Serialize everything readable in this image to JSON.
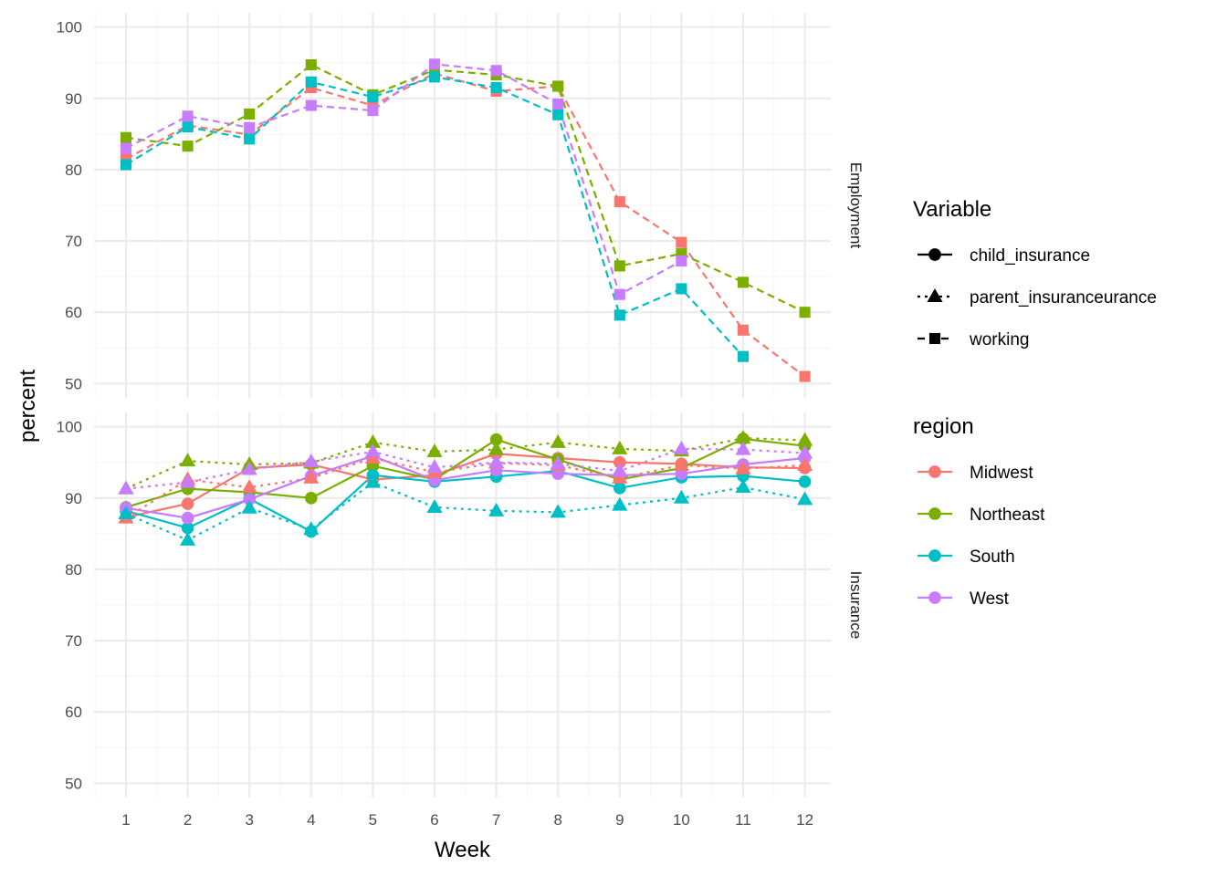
{
  "chart_data": {
    "type": "line",
    "xlabel": "Week",
    "ylabel": "percent",
    "x": [
      1,
      2,
      3,
      4,
      5,
      6,
      7,
      8,
      9,
      10,
      11,
      12
    ],
    "ylim": [
      48,
      102
    ],
    "yticks": [
      50,
      60,
      70,
      80,
      90,
      100
    ],
    "grid": true,
    "legend_position": "right",
    "facets": [
      {
        "name": "Employment",
        "series": [
          {
            "region": "Midwest",
            "variable": "working",
            "values": [
              81.5,
              86.2,
              84.9,
              91.5,
              89.0,
              93.5,
              91.0,
              91.7,
              75.5,
              69.8,
              57.5,
              51.0
            ]
          },
          {
            "region": "Northeast",
            "variable": "working",
            "values": [
              84.5,
              83.3,
              87.8,
              94.7,
              90.5,
              94.0,
              93.3,
              91.7,
              66.5,
              68.2,
              64.2,
              60.0
            ]
          },
          {
            "region": "South",
            "variable": "working",
            "values": [
              80.7,
              86.0,
              84.3,
              92.3,
              90.2,
              93.0,
              91.5,
              87.7,
              59.6,
              63.3,
              53.8,
              null
            ]
          },
          {
            "region": "West",
            "variable": "working",
            "values": [
              83.0,
              87.5,
              85.9,
              89.0,
              88.3,
              94.8,
              93.9,
              89.2,
              62.5,
              67.2,
              null,
              null
            ]
          }
        ]
      },
      {
        "name": "Insurance",
        "series": [
          {
            "region": "Midwest",
            "variable": "child_insurance",
            "values": [
              87.3,
              89.2,
              94.2,
              94.7,
              92.6,
              93.2,
              96.2,
              95.6,
              95.0,
              94.8,
              94.3,
              94.2
            ]
          },
          {
            "region": "Northeast",
            "variable": "child_insurance",
            "values": [
              88.7,
              91.3,
              90.8,
              90.0,
              94.5,
              92.6,
              98.2,
              95.4,
              92.6,
              94.2,
              98.3,
              97.3
            ]
          },
          {
            "region": "South",
            "variable": "child_insurance",
            "values": [
              88.2,
              85.8,
              89.9,
              85.3,
              93.2,
              92.3,
              93.0,
              93.8,
              91.4,
              92.9,
              93.1,
              92.3
            ]
          },
          {
            "region": "West",
            "variable": "child_insurance",
            "values": [
              88.6,
              87.2,
              89.8,
              93.1,
              95.9,
              92.5,
              93.9,
              93.4,
              93.2,
              93.4,
              94.7,
              95.6
            ]
          },
          {
            "region": "Midwest",
            "variable": "parent_insuranceurance",
            "values": [
              87.2,
              92.6,
              91.5,
              92.8,
              95.6,
              93.6,
              94.9,
              94.6,
              92.8,
              94.6,
              94.1,
              94.6
            ]
          },
          {
            "region": "Northeast",
            "variable": "parent_insuranceurance",
            "values": [
              91.3,
              95.2,
              94.7,
              94.9,
              97.8,
              96.5,
              96.8,
              97.8,
              96.9,
              96.6,
              98.4,
              98.1
            ]
          },
          {
            "region": "South",
            "variable": "parent_insuranceurance",
            "values": [
              87.8,
              84.1,
              88.6,
              85.6,
              92.2,
              88.7,
              88.2,
              88.0,
              89.0,
              90.0,
              91.5,
              89.8
            ]
          },
          {
            "region": "West",
            "variable": "parent_insuranceurance",
            "values": [
              91.3,
              92.2,
              94.0,
              95.1,
              96.5,
              94.3,
              95.0,
              94.8,
              93.8,
              96.9,
              96.8,
              96.3
            ]
          }
        ]
      }
    ]
  },
  "legend": {
    "variable_title": "Variable",
    "variable_items": [
      {
        "label": "child_insurance",
        "shape": "circle",
        "line": "solid"
      },
      {
        "label": "parent_insuranceurance",
        "shape": "triangle",
        "line": "dotted"
      },
      {
        "label": "working",
        "shape": "square",
        "line": "dashed"
      }
    ],
    "region_title": "region",
    "region_items": [
      {
        "label": "Midwest",
        "color": "#F8766D"
      },
      {
        "label": "Northeast",
        "color": "#7CAE00"
      },
      {
        "label": "South",
        "color": "#00BFC4"
      },
      {
        "label": "West",
        "color": "#C77CFF"
      }
    ]
  },
  "colors": {
    "Midwest": "#F8766D",
    "Northeast": "#7CAE00",
    "South": "#00BFC4",
    "West": "#C77CFF",
    "grid_major": "#EBEBEB",
    "grid_minor": "#F5F5F5"
  }
}
